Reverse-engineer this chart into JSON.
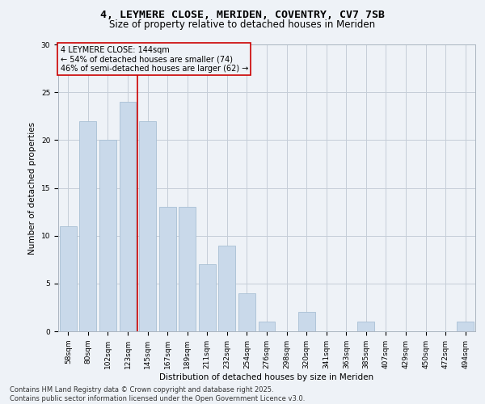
{
  "title_line1": "4, LEYMERE CLOSE, MERIDEN, COVENTRY, CV7 7SB",
  "title_line2": "Size of property relative to detached houses in Meriden",
  "xlabel": "Distribution of detached houses by size in Meriden",
  "ylabel": "Number of detached properties",
  "categories": [
    "58sqm",
    "80sqm",
    "102sqm",
    "123sqm",
    "145sqm",
    "167sqm",
    "189sqm",
    "211sqm",
    "232sqm",
    "254sqm",
    "276sqm",
    "298sqm",
    "320sqm",
    "341sqm",
    "363sqm",
    "385sqm",
    "407sqm",
    "429sqm",
    "450sqm",
    "472sqm",
    "494sqm"
  ],
  "values": [
    11,
    22,
    20,
    24,
    22,
    13,
    13,
    7,
    9,
    4,
    1,
    0,
    2,
    0,
    0,
    1,
    0,
    0,
    0,
    0,
    1
  ],
  "bar_color": "#c9d9ea",
  "bar_edgecolor": "#a8bfd4",
  "grid_color": "#c5cdd8",
  "background_color": "#eef2f7",
  "annotation_text": "4 LEYMERE CLOSE: 144sqm\n← 54% of detached houses are smaller (74)\n46% of semi-detached houses are larger (62) →",
  "vline_index": 4,
  "vline_color": "#cc0000",
  "annotation_box_edgecolor": "#cc0000",
  "ylim": [
    0,
    30
  ],
  "yticks": [
    0,
    5,
    10,
    15,
    20,
    25,
    30
  ],
  "footer_line1": "Contains HM Land Registry data © Crown copyright and database right 2025.",
  "footer_line2": "Contains public sector information licensed under the Open Government Licence v3.0.",
  "title_fontsize": 9.5,
  "subtitle_fontsize": 8.5,
  "label_fontsize": 7.5,
  "tick_fontsize": 6.5,
  "annotation_fontsize": 7,
  "footer_fontsize": 6
}
